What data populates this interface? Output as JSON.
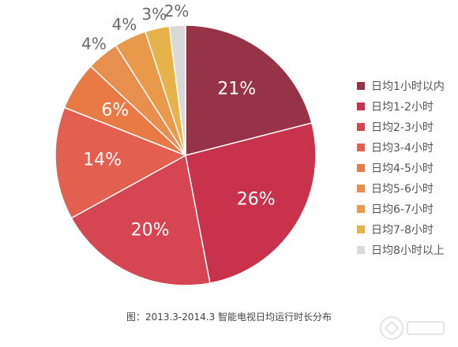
{
  "chart_data": {
    "type": "pie",
    "categories": [
      "日均1小时以内",
      "日均1-2小时",
      "日均2-3小时",
      "日均3-4小时",
      "日均4-5小时",
      "日均5-6小时",
      "日均6-7小时",
      "日均7-8小时",
      "日均8小时以上"
    ],
    "values": [
      21,
      26,
      20,
      14,
      6,
      4,
      4,
      3,
      2
    ],
    "data_labels": [
      "21%",
      "26%",
      "20%",
      "14%",
      "6%",
      "4%",
      "4%",
      "3%",
      "2%"
    ],
    "colors": [
      "#973346",
      "#c8324a",
      "#d54552",
      "#e35f4f",
      "#e87a46",
      "#e68f4e",
      "#e89a4a",
      "#e6b24a",
      "#d9d9d9"
    ],
    "legend": "right",
    "title": "图：2013.3-2014.3 智能电视日均运行时长分布"
  }
}
